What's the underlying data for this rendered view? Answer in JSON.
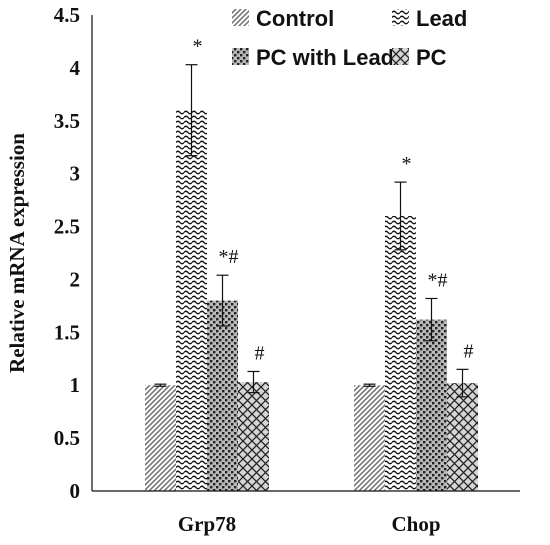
{
  "chart_data": {
    "type": "bar",
    "title": "",
    "xlabel": "",
    "ylabel": "Relative mRNA expression",
    "ylim": [
      0,
      4.5
    ],
    "yticks": [
      "0",
      "0.5",
      "1",
      "1.5",
      "2",
      "2.5",
      "3",
      "3.5",
      "4",
      "4.5"
    ],
    "categories": [
      "Grp78",
      "Chop"
    ],
    "legend_position": "top-right",
    "grid": false,
    "series": [
      {
        "name": "Control",
        "values": [
          1.0,
          1.0
        ],
        "errors": [
          0.01,
          0.01
        ],
        "pattern": "diagonal-stripe",
        "annotations": [
          "",
          ""
        ]
      },
      {
        "name": "Lead",
        "values": [
          3.6,
          2.6
        ],
        "errors": [
          0.43,
          0.32
        ],
        "pattern": "wave",
        "annotations": [
          "*",
          "*"
        ]
      },
      {
        "name": "PC with Lead",
        "values": [
          1.8,
          1.62
        ],
        "errors": [
          0.24,
          0.2
        ],
        "pattern": "dots",
        "annotations": [
          "*#",
          "*#"
        ]
      },
      {
        "name": "PC",
        "values": [
          1.03,
          1.02
        ],
        "errors": [
          0.1,
          0.13
        ],
        "pattern": "crosshatch",
        "annotations": [
          "#",
          "#"
        ]
      }
    ]
  }
}
